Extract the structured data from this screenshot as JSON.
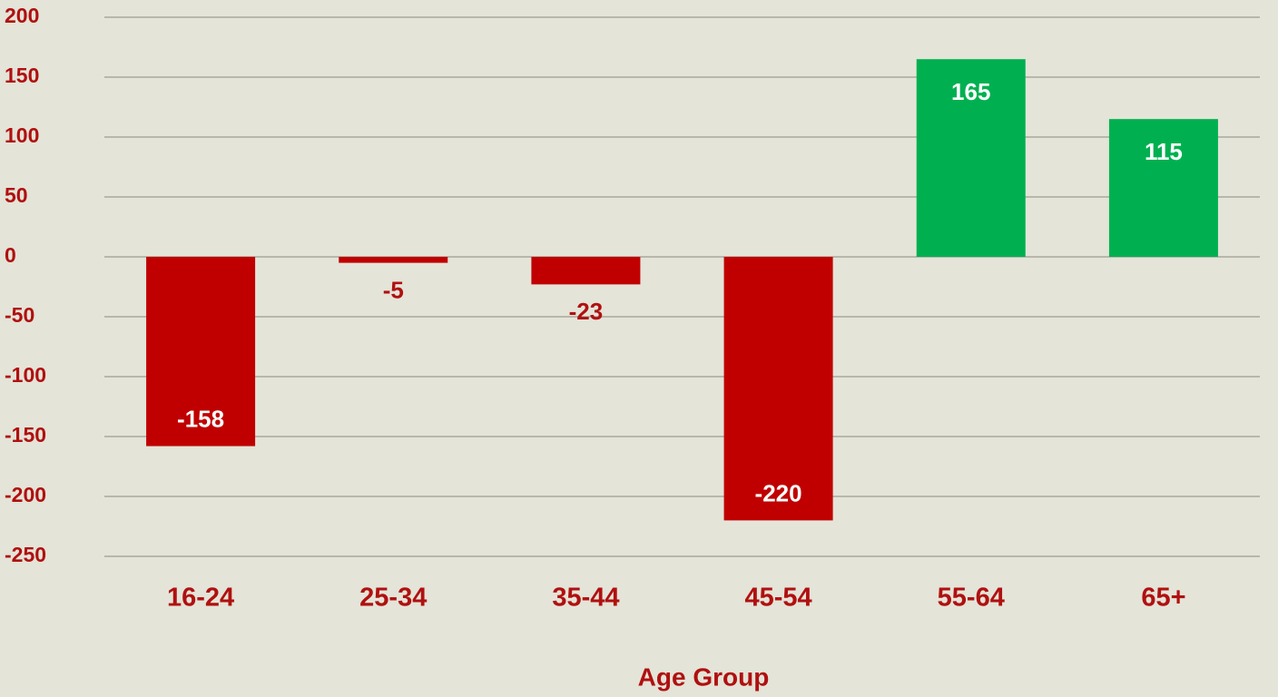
{
  "chart_data": {
    "type": "bar",
    "x_label": "Age Group",
    "categories": [
      "16-24",
      "25-34",
      "35-44",
      "45-54",
      "55-64",
      "65+"
    ],
    "values": [
      -158,
      -5,
      -23,
      -220,
      165,
      115
    ],
    "colors": [
      "#c00000",
      "#c00000",
      "#c00000",
      "#c00000",
      "#00b050",
      "#00b050"
    ],
    "ylim": [
      -250,
      200
    ],
    "yticks": [
      -250,
      -200,
      -150,
      -100,
      -50,
      0,
      50,
      100,
      150,
      200
    ],
    "grid": true
  }
}
